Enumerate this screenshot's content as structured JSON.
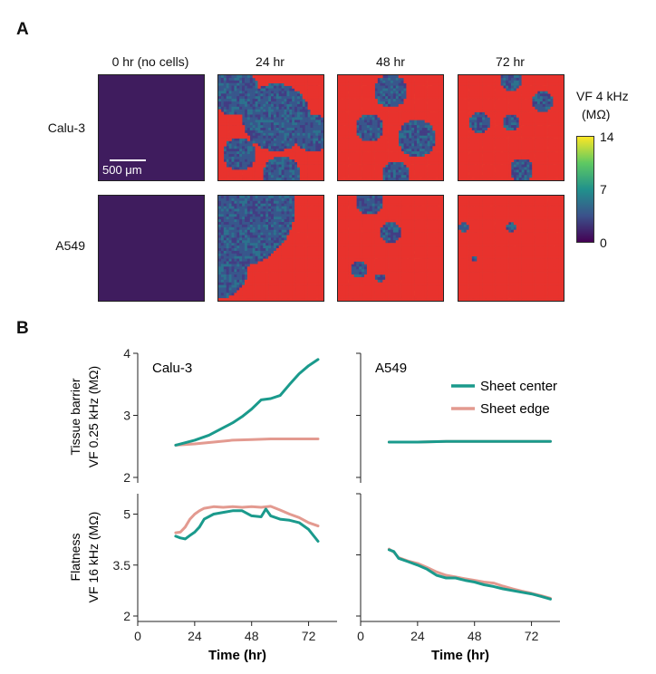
{
  "panel_a": {
    "letter": "A",
    "columns": [
      "0 hr (no cells)",
      "24 hr",
      "48 hr",
      "72 hr"
    ],
    "rows": [
      "Calu-3",
      "A549"
    ],
    "scale_bar_label": "500 μm",
    "colorbar": {
      "title_line1": "VF 4 kHz",
      "title_line2": "(MΩ)",
      "ticks": [
        "14",
        "7",
        "0"
      ],
      "colors": [
        "#440154",
        "#3b528b",
        "#21918c",
        "#5ec962",
        "#fde725"
      ]
    },
    "tile_descriptions": {
      "calu3_0": "empty",
      "calu3_24": "sparse cells with red edges",
      "calu3_48": "dense cells with bright regions",
      "calu3_72": "dense cells",
      "a549_0": "empty",
      "a549_24": "sheet from bottom-right",
      "a549_48": "sheet covering most",
      "a549_72": "full coverage"
    }
  },
  "panel_b": {
    "letter": "B",
    "legend": [
      {
        "name": "Sheet center",
        "color": "#1a9a8c"
      },
      {
        "name": "Sheet edge",
        "color": "#e39a90"
      }
    ],
    "x_label": "Time (hr)",
    "x_ticks": [
      "0",
      "24",
      "48",
      "72"
    ]
  },
  "chart_data": [
    {
      "type": "line",
      "title": "Calu-3",
      "ylabel_line1": "Tissue barrier",
      "ylabel_line2": "VF 0.25 kHz (MΩ)",
      "xlim": [
        0,
        84
      ],
      "ylim": [
        2,
        4
      ],
      "yticks": [
        "2",
        "3",
        "4"
      ],
      "series": [
        {
          "name": "Sheet center",
          "x": [
            16,
            24,
            30,
            36,
            40,
            44,
            48,
            52,
            56,
            60,
            64,
            68,
            72,
            76
          ],
          "y": [
            2.52,
            2.6,
            2.68,
            2.8,
            2.88,
            2.98,
            3.1,
            3.25,
            3.27,
            3.32,
            3.5,
            3.67,
            3.8,
            3.9
          ]
        },
        {
          "name": "Sheet edge",
          "x": [
            16,
            24,
            32,
            40,
            48,
            56,
            64,
            72,
            76
          ],
          "y": [
            2.52,
            2.54,
            2.57,
            2.6,
            2.61,
            2.62,
            2.62,
            2.62,
            2.62
          ]
        }
      ]
    },
    {
      "type": "line",
      "title": "A549",
      "ylabel_line1": "",
      "ylabel_line2": "",
      "xlim": [
        0,
        84
      ],
      "ylim": [
        2,
        4
      ],
      "series": [
        {
          "name": "Sheet center",
          "x": [
            12,
            24,
            36,
            48,
            60,
            72,
            80
          ],
          "y": [
            2.57,
            2.57,
            2.58,
            2.58,
            2.58,
            2.58,
            2.58
          ]
        },
        {
          "name": "Sheet edge",
          "x": [
            12,
            24,
            36,
            48,
            60,
            72,
            80
          ],
          "y": [
            2.57,
            2.57,
            2.58,
            2.58,
            2.58,
            2.58,
            2.58
          ]
        }
      ]
    },
    {
      "type": "line",
      "title": "",
      "ylabel_line1": "Flatness",
      "ylabel_line2": "VF 16 kHz (MΩ)",
      "xlim": [
        0,
        84
      ],
      "ylim": [
        2,
        5.6
      ],
      "yticks": [
        "2",
        "3.5",
        "5"
      ],
      "series": [
        {
          "name": "Sheet center",
          "x": [
            16,
            18,
            20,
            22,
            24,
            26,
            28,
            32,
            36,
            40,
            44,
            48,
            52,
            54,
            56,
            60,
            64,
            68,
            72,
            76
          ],
          "y": [
            4.35,
            4.3,
            4.27,
            4.37,
            4.47,
            4.62,
            4.85,
            5.0,
            5.05,
            5.1,
            5.1,
            4.95,
            4.92,
            5.15,
            4.95,
            4.85,
            4.82,
            4.75,
            4.55,
            4.2
          ]
        },
        {
          "name": "Sheet edge",
          "x": [
            16,
            18,
            20,
            22,
            24,
            26,
            28,
            32,
            36,
            40,
            44,
            48,
            52,
            56,
            60,
            64,
            68,
            72,
            76
          ],
          "y": [
            4.45,
            4.47,
            4.62,
            4.85,
            5.0,
            5.1,
            5.17,
            5.22,
            5.2,
            5.22,
            5.2,
            5.22,
            5.2,
            5.23,
            5.12,
            5.0,
            4.9,
            4.75,
            4.65
          ]
        }
      ]
    },
    {
      "type": "line",
      "title": "",
      "ylabel_line1": "",
      "ylabel_line2": "",
      "xlim": [
        0,
        84
      ],
      "ylim": [
        2,
        5.6
      ],
      "series": [
        {
          "name": "Sheet center",
          "x": [
            12,
            14,
            16,
            20,
            24,
            28,
            32,
            36,
            40,
            44,
            48,
            52,
            56,
            60,
            64,
            68,
            72,
            76,
            80
          ],
          "y": [
            3.95,
            3.9,
            3.7,
            3.6,
            3.5,
            3.38,
            3.2,
            3.12,
            3.12,
            3.05,
            3.0,
            2.92,
            2.87,
            2.8,
            2.75,
            2.7,
            2.65,
            2.58,
            2.5
          ]
        },
        {
          "name": "Sheet edge",
          "x": [
            12,
            14,
            16,
            20,
            24,
            28,
            32,
            36,
            40,
            44,
            48,
            52,
            56,
            60,
            64,
            68,
            72,
            76,
            80
          ],
          "y": [
            3.97,
            3.88,
            3.72,
            3.62,
            3.55,
            3.43,
            3.3,
            3.2,
            3.15,
            3.1,
            3.05,
            3.0,
            2.97,
            2.88,
            2.8,
            2.73,
            2.67,
            2.6,
            2.52
          ]
        }
      ]
    }
  ]
}
